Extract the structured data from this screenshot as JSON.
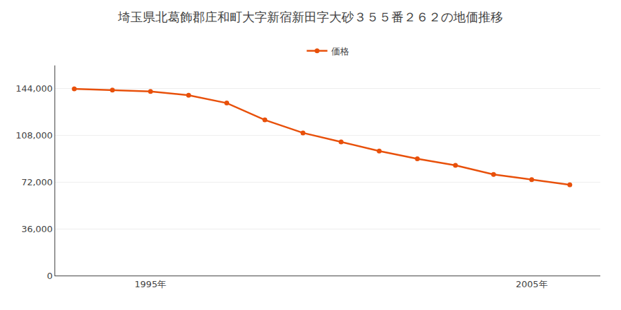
{
  "chart_data": {
    "type": "line",
    "title": "埼玉県北葛飾郡庄和町大字新宿新田字大砂３５５番２６２の地価推移",
    "x": [
      1993,
      1994,
      1995,
      1996,
      1997,
      1998,
      1999,
      2000,
      2001,
      2002,
      2003,
      2004,
      2005,
      2006
    ],
    "series": [
      {
        "name": "価格",
        "color": "#e8500a",
        "marker": "circle",
        "values": [
          144000,
          143000,
          142000,
          139000,
          133000,
          120000,
          110000,
          103000,
          96000,
          90000,
          85000,
          78000,
          74000,
          70000
        ]
      }
    ],
    "xlim": [
      1992.5,
      2006.8
    ],
    "xticks": [
      {
        "value": 1995,
        "label": "1995年"
      },
      {
        "value": 2005,
        "label": "2005年"
      }
    ],
    "ylim": [
      0,
      162000
    ],
    "yticks": [
      0,
      {
        "value": 36000,
        "label": "36,000"
      },
      {
        "value": 72000,
        "label": "72,000"
      },
      {
        "value": 108000,
        "label": "108,000"
      },
      {
        "value": 144000,
        "label": "144,000"
      }
    ],
    "grid": "y",
    "legend": "top"
  }
}
